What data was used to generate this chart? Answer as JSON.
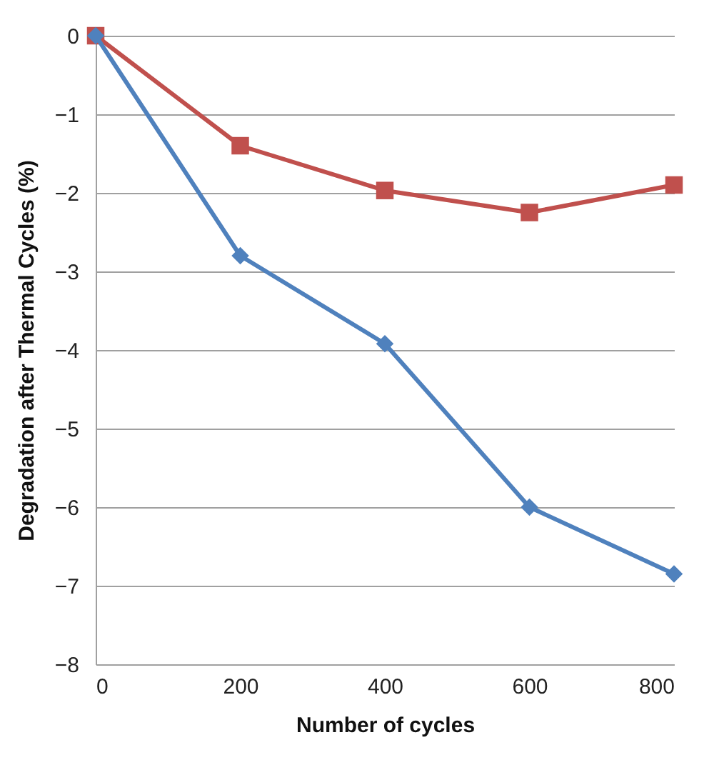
{
  "chart_data": {
    "type": "line",
    "xlabel": "Number of cycles",
    "ylabel": "Degradation after Thermal Cycles (%)",
    "x": [
      0,
      200,
      400,
      600,
      800
    ],
    "series": [
      {
        "color": "#c0504d",
        "marker": "square",
        "values": [
          0,
          -1.4,
          -1.97,
          -2.25,
          -1.9
        ]
      },
      {
        "color": "#4f81bd",
        "marker": "diamond",
        "values": [
          0,
          -2.8,
          -3.92,
          -6.0,
          -6.85
        ]
      }
    ],
    "xlim": [
      0,
      800
    ],
    "xticks": [
      0,
      200,
      400,
      600,
      800
    ],
    "ylim": [
      -8,
      0
    ],
    "yticks": [
      -8,
      -7,
      -6,
      -5,
      -4,
      -3,
      -2,
      -1,
      0
    ],
    "grid": "y"
  }
}
